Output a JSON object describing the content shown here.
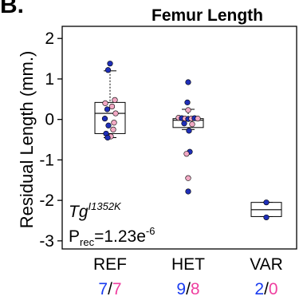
{
  "panel_label": "B.",
  "chart_data": {
    "type": "box",
    "title": "Femur Length",
    "ylabel": "Residual Length (mm.)",
    "ylim": [
      -3.2,
      2.3
    ],
    "yticks": [
      2,
      1,
      0,
      -1,
      -2,
      -3
    ],
    "ytick_labels": [
      "2",
      "1",
      "0",
      "-1",
      "-2",
      "-3"
    ],
    "categories": [
      "REF",
      "HET",
      "VAR"
    ],
    "counts": [
      {
        "male": "7",
        "female": "7"
      },
      {
        "male": "9",
        "female": "8"
      },
      {
        "male": "2",
        "female": "0"
      }
    ],
    "colors": {
      "male": "#1f2fb8",
      "female": "#f2a9c4",
      "male_count": "#1a3cf0",
      "female_count": "#ef3fa0",
      "box_edge": "#000000",
      "point_edge": "#000000"
    },
    "boxes": [
      {
        "category": "REF",
        "q1": -0.35,
        "median": 0.15,
        "q3": 0.42,
        "whisker_low": -0.45,
        "whisker_high": 1.2
      },
      {
        "category": "HET",
        "q1": -0.2,
        "median": -0.02,
        "q3": 0.02,
        "whisker_low": -0.25,
        "whisker_high": 0.25
      },
      {
        "category": "VAR",
        "q1": -2.4,
        "median": -2.23,
        "q3": -2.05,
        "whisker_low": -2.4,
        "whisker_high": -2.05
      }
    ],
    "points": [
      {
        "category": "REF",
        "y": 1.38,
        "sex": "male",
        "jitter": 0.0
      },
      {
        "category": "REF",
        "y": 1.22,
        "sex": "male",
        "jitter": -0.05
      },
      {
        "category": "REF",
        "y": 0.48,
        "sex": "female",
        "jitter": 0.12
      },
      {
        "category": "REF",
        "y": 0.4,
        "sex": "female",
        "jitter": -0.12
      },
      {
        "category": "REF",
        "y": 0.32,
        "sex": "female",
        "jitter": 0.05
      },
      {
        "category": "REF",
        "y": 0.25,
        "sex": "male",
        "jitter": -0.07
      },
      {
        "category": "REF",
        "y": 0.15,
        "sex": "female",
        "jitter": 0.14
      },
      {
        "category": "REF",
        "y": 0.02,
        "sex": "male",
        "jitter": -0.13
      },
      {
        "category": "REF",
        "y": -0.08,
        "sex": "female",
        "jitter": 0.1
      },
      {
        "category": "REF",
        "y": -0.15,
        "sex": "male",
        "jitter": -0.04
      },
      {
        "category": "REF",
        "y": -0.25,
        "sex": "female",
        "jitter": 0.08
      },
      {
        "category": "REF",
        "y": -0.35,
        "sex": "male",
        "jitter": -0.1
      },
      {
        "category": "REF",
        "y": -0.42,
        "sex": "female",
        "jitter": 0.02
      },
      {
        "category": "REF",
        "y": -0.45,
        "sex": "male",
        "jitter": -0.06
      },
      {
        "category": "HET",
        "y": 0.92,
        "sex": "male",
        "jitter": 0.0
      },
      {
        "category": "HET",
        "y": 0.42,
        "sex": "male",
        "jitter": -0.02
      },
      {
        "category": "HET",
        "y": 0.23,
        "sex": "female",
        "jitter": 0.0
      },
      {
        "category": "HET",
        "y": 0.04,
        "sex": "female",
        "jitter": -0.24
      },
      {
        "category": "HET",
        "y": 0.03,
        "sex": "male",
        "jitter": -0.16
      },
      {
        "category": "HET",
        "y": 0.02,
        "sex": "female",
        "jitter": -0.08
      },
      {
        "category": "HET",
        "y": 0.01,
        "sex": "male",
        "jitter": 0.0
      },
      {
        "category": "HET",
        "y": 0.02,
        "sex": "female",
        "jitter": 0.08
      },
      {
        "category": "HET",
        "y": 0.03,
        "sex": "male",
        "jitter": 0.16
      },
      {
        "category": "HET",
        "y": 0.02,
        "sex": "female",
        "jitter": 0.24
      },
      {
        "category": "HET",
        "y": -0.1,
        "sex": "male",
        "jitter": -0.1
      },
      {
        "category": "HET",
        "y": -0.12,
        "sex": "female",
        "jitter": 0.1
      },
      {
        "category": "HET",
        "y": -0.28,
        "sex": "male",
        "jitter": 0.02
      },
      {
        "category": "HET",
        "y": -0.8,
        "sex": "male",
        "jitter": 0.04
      },
      {
        "category": "HET",
        "y": -0.85,
        "sex": "female",
        "jitter": -0.04
      },
      {
        "category": "HET",
        "y": -1.45,
        "sex": "female",
        "jitter": 0.0
      },
      {
        "category": "HET",
        "y": -1.78,
        "sex": "male",
        "jitter": 0.0
      },
      {
        "category": "VAR",
        "y": -2.05,
        "sex": "male",
        "jitter": 0.0
      },
      {
        "category": "VAR",
        "y": -2.42,
        "sex": "male",
        "jitter": 0.0
      }
    ],
    "annotations": {
      "gene_base": "Tg",
      "gene_sup": "I1352K",
      "p_prefix": "P",
      "p_sub": "rec",
      "p_value": "=1.23e",
      "p_exp": "-6"
    },
    "grid": false
  }
}
